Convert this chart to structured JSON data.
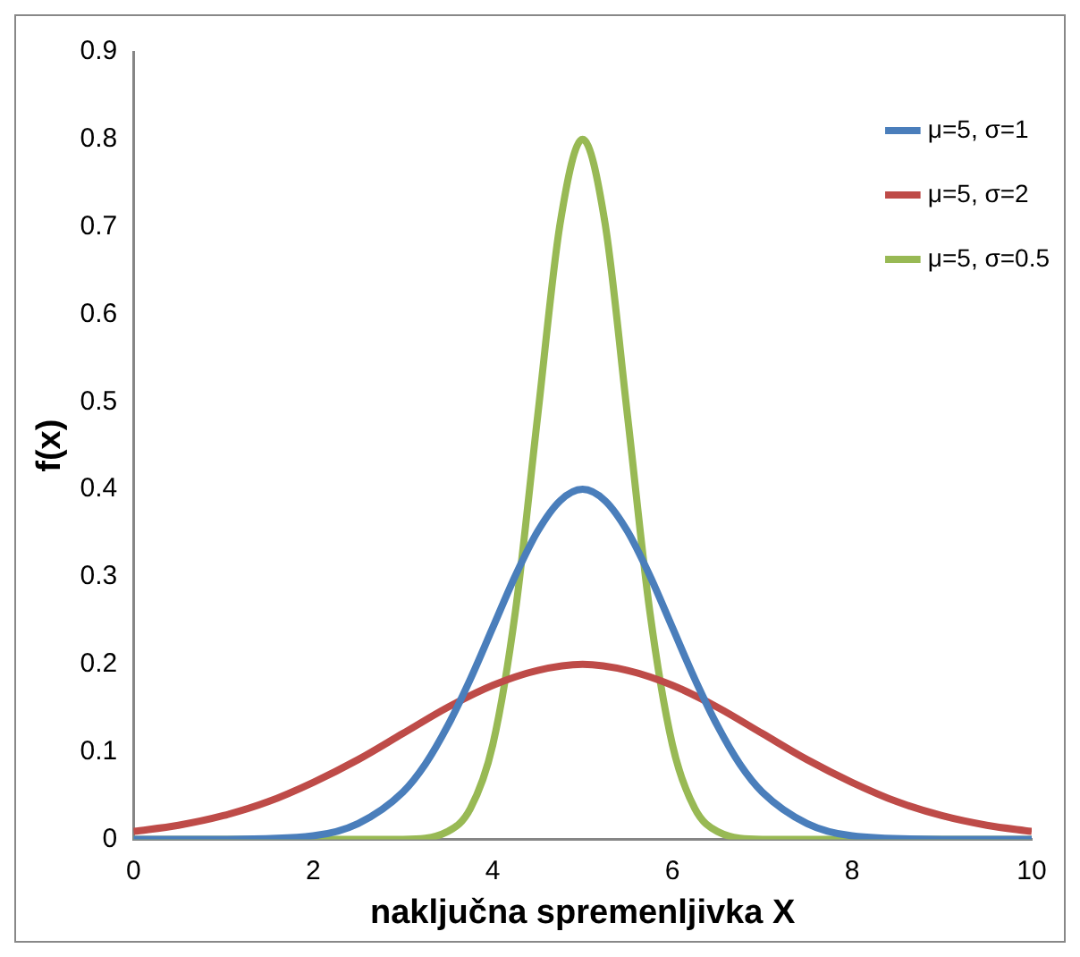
{
  "chart_data": {
    "type": "line",
    "xlabel": "naključna spremenljivka X",
    "ylabel": "f(x)",
    "xlim": [
      0,
      10
    ],
    "xticks": [
      0,
      2,
      4,
      6,
      8,
      10
    ],
    "ylim": [
      0,
      0.9
    ],
    "yticks": [
      0,
      0.1,
      0.2,
      0.3,
      0.4,
      0.5,
      0.6,
      0.7,
      0.8,
      0.9
    ],
    "grid": false,
    "legend": "top right",
    "marker": "none",
    "line_style": "solid",
    "series": [
      {
        "name": "μ=5, σ=1",
        "color": "#4a7ebb",
        "x": [
          0,
          1,
          2,
          2.5,
          3,
          3.25,
          3.5,
          3.75,
          4,
          4.25,
          4.5,
          4.75,
          5,
          5.25,
          5.5,
          5.75,
          6,
          6.25,
          6.5,
          6.75,
          7,
          7.5,
          8,
          9,
          10
        ],
        "values": [
          0,
          0,
          0.004,
          0.018,
          0.054,
          0.086,
          0.13,
          0.183,
          0.242,
          0.301,
          0.352,
          0.387,
          0.4,
          0.387,
          0.352,
          0.301,
          0.242,
          0.183,
          0.13,
          0.086,
          0.054,
          0.018,
          0.004,
          0,
          0
        ]
      },
      {
        "name": "μ=5, σ=2",
        "color": "#be4b48",
        "x": [
          0,
          0.5,
          1,
          1.5,
          2,
          2.5,
          3,
          3.5,
          4,
          4.5,
          5,
          5.5,
          6,
          6.5,
          7,
          7.5,
          8,
          8.5,
          9,
          9.5,
          10
        ],
        "values": [
          0.009,
          0.016,
          0.027,
          0.043,
          0.065,
          0.091,
          0.121,
          0.151,
          0.176,
          0.193,
          0.2,
          0.193,
          0.176,
          0.151,
          0.121,
          0.091,
          0.065,
          0.043,
          0.027,
          0.016,
          0.009
        ]
      },
      {
        "name": "μ=5, σ=0.5",
        "color": "#98b954",
        "x": [
          0,
          2,
          3,
          3.5,
          3.75,
          4,
          4.25,
          4.5,
          4.75,
          5,
          5.25,
          5.5,
          5.75,
          6,
          6.25,
          6.5,
          7,
          8,
          10
        ],
        "values": [
          0,
          0,
          0,
          0.009,
          0.035,
          0.108,
          0.259,
          0.484,
          0.704,
          0.8,
          0.704,
          0.484,
          0.259,
          0.108,
          0.035,
          0.009,
          0,
          0,
          0
        ]
      }
    ]
  }
}
